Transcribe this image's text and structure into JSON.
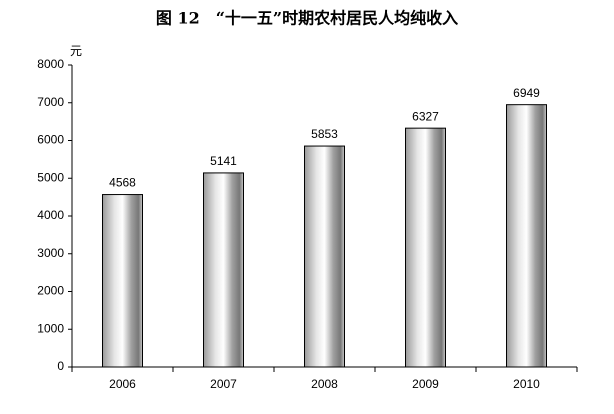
{
  "chart_data": {
    "type": "bar",
    "title": "图 12　“十一五”时期农村居民人均纯收入",
    "y_label": "元",
    "categories": [
      "2006",
      "2007",
      "2008",
      "2009",
      "2010"
    ],
    "values": [
      4568,
      5141,
      5853,
      6327,
      6949
    ],
    "ylim": [
      0,
      8000
    ],
    "yticks": [
      0,
      1000,
      2000,
      3000,
      4000,
      5000,
      6000,
      7000,
      8000
    ]
  }
}
